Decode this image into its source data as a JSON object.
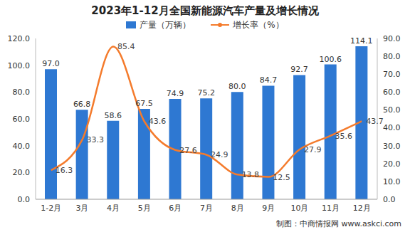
{
  "chart_data": {
    "type": "bar_line",
    "title": "2023年1-12月全国新能源汽车产量及增长情况",
    "categories": [
      "1-2月",
      "3月",
      "4月",
      "5月",
      "6月",
      "7月",
      "8月",
      "9月",
      "10月",
      "11月",
      "12月"
    ],
    "series": [
      {
        "name": "产量（万辆）",
        "type": "bar",
        "color": "#2e78d2",
        "values": [
          97.0,
          66.8,
          58.6,
          67.5,
          74.9,
          75.2,
          80.0,
          84.7,
          92.7,
          100.6,
          114.1
        ],
        "value_labels": [
          "97.0",
          "66.8",
          "58.6",
          "67.5",
          "74.9",
          "75.2",
          "80.0",
          "84.7",
          "92.7",
          "100.6",
          "114.1"
        ]
      },
      {
        "name": "增长率（%）",
        "type": "line",
        "axis": "y2",
        "color": "#f47b2c",
        "line_style": "solid",
        "values": [
          16.3,
          33.3,
          85.4,
          43.6,
          27.6,
          24.9,
          13.8,
          12.5,
          27.9,
          35.6,
          43.7
        ]
      }
    ],
    "ylim": [
      0,
      120
    ],
    "yticks": [
      {
        "value": 0,
        "label": "0.0"
      },
      {
        "value": 20,
        "label": "20.0"
      },
      {
        "value": 40,
        "label": "40.0"
      },
      {
        "value": 60,
        "label": "60.0"
      },
      {
        "value": 80,
        "label": "80.0"
      },
      {
        "value": 100,
        "label": "100.0"
      },
      {
        "value": 120,
        "label": "120.0"
      }
    ],
    "y2lim": [
      0,
      90
    ],
    "y2ticks": [
      {
        "value": 0,
        "label": "0.0"
      },
      {
        "value": 10,
        "label": "10.0"
      },
      {
        "value": 20,
        "label": "20.0"
      },
      {
        "value": 30,
        "label": "30.0"
      },
      {
        "value": 40,
        "label": "40.0"
      },
      {
        "value": 50,
        "label": "50.0"
      },
      {
        "value": 60,
        "label": "60.0"
      },
      {
        "value": 70,
        "label": "70.0"
      },
      {
        "value": 80,
        "label": "80.0"
      },
      {
        "value": 90,
        "label": "90.0"
      }
    ],
    "grid": false,
    "data_labels": true,
    "legend": "top",
    "annotations": [
      "制图：中商情报网 www.askci.com"
    ]
  }
}
